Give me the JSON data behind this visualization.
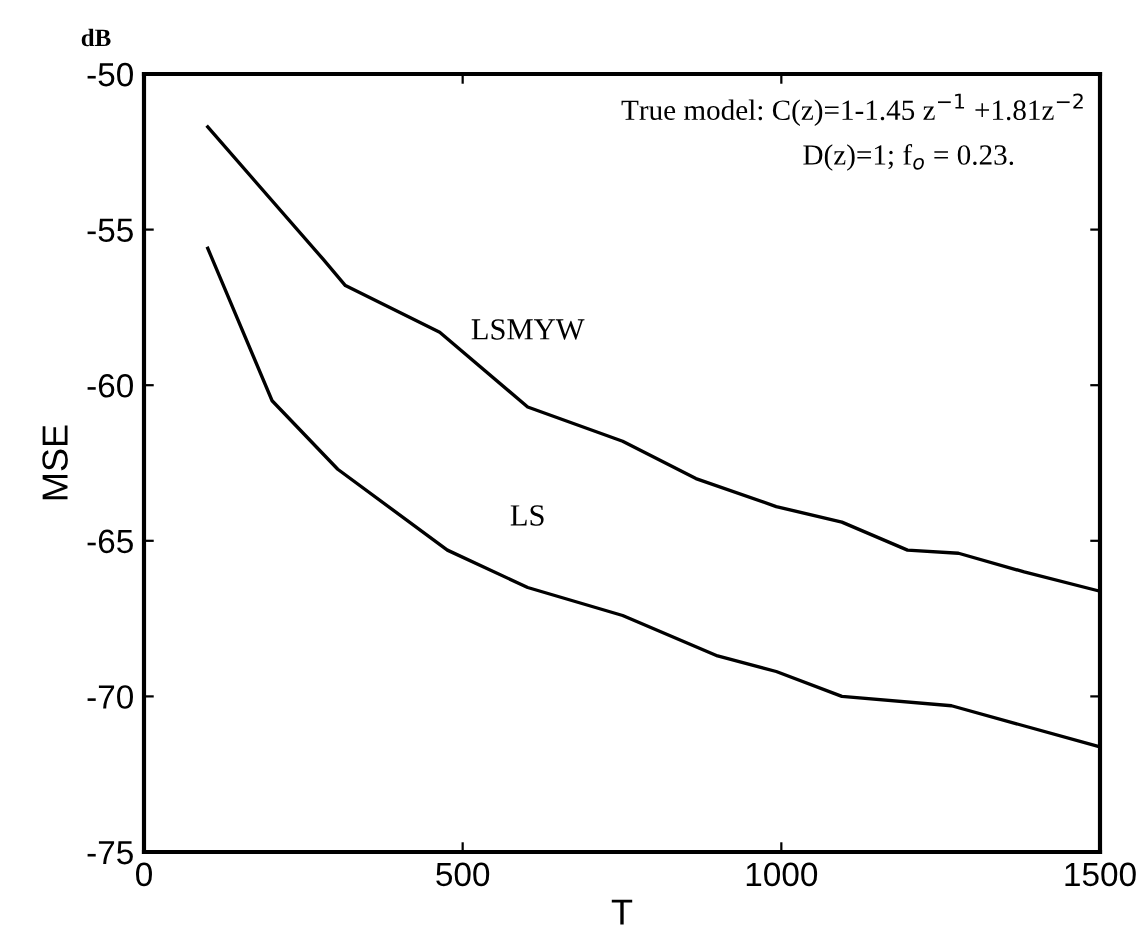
{
  "chart_data": {
    "type": "line",
    "xlabel": "T",
    "ylabel": "MSE",
    "annotations": [
      "dB",
      "True model: C(z)=1-1.45 z$^{−1}$ +1.81z$^{−2}$",
      "D(z)=1; f$_{o}$ = 0.23."
    ],
    "xlim": [
      0,
      1500
    ],
    "xticks": [
      0,
      500,
      1000,
      1500
    ],
    "ylim": [
      -75,
      -50
    ],
    "yticks": [
      -75,
      -70,
      -65,
      -60,
      -55,
      -50
    ],
    "grid": false,
    "legend": false,
    "line_style": "solid",
    "marker": "none",
    "series": [
      {
        "name": "LSMYW",
        "color": "#000000",
        "x": [
          100,
          281,
          316,
          464,
          602,
          751,
          866,
          992,
          1095,
          1198,
          1278,
          1381,
          1496
        ],
        "values": [
          -51.7,
          -55.95,
          -56.8,
          -58.3,
          -60.7,
          -61.8,
          -63.0,
          -63.9,
          -64.4,
          -65.3,
          -65.4,
          -66.0,
          -66.6
        ]
      },
      {
        "name": "LS",
        "color": "#000000",
        "x": [
          100,
          201,
          304,
          476,
          602,
          751,
          900,
          992,
          1095,
          1267,
          1496
        ],
        "values": [
          -55.6,
          -60.5,
          -62.7,
          -65.3,
          -66.5,
          -67.4,
          -68.7,
          -69.2,
          -70.0,
          -70.3,
          -71.6
        ]
      }
    ]
  }
}
